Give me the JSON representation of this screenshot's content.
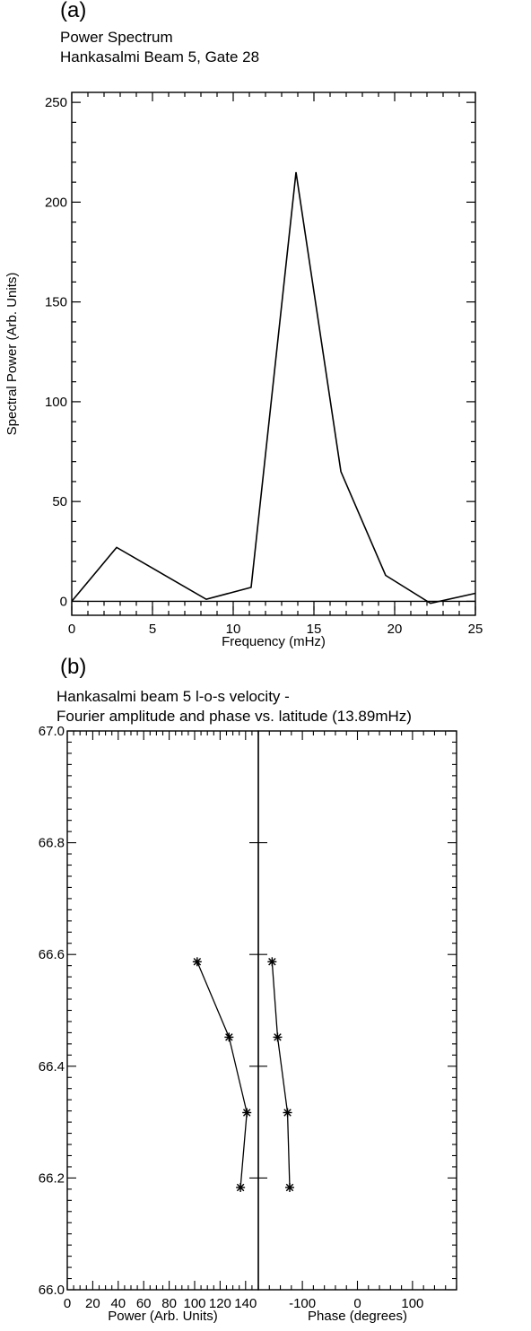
{
  "panel_a": {
    "label": "(a)",
    "title_line1": "Power Spectrum",
    "title_line2": "Hankasalmi Beam 5, Gate 28"
  },
  "panel_b": {
    "label": "(b)",
    "title_line1": "Hankasalmi beam 5 l-o-s velocity -",
    "title_line2": "Fourier amplitude and phase vs. latitude (13.89mHz)"
  },
  "chart_data": [
    {
      "type": "line",
      "title": "Power Spectrum",
      "subtitle": "Hankasalmi Beam 5, Gate 28",
      "xlabel": "Frequency (mHz)",
      "ylabel": "Spectral Power (Arb. Units)",
      "xlim": [
        0,
        25
      ],
      "ylim": [
        -7,
        255
      ],
      "x_ticks": [
        0,
        5,
        10,
        15,
        20,
        25
      ],
      "y_ticks": [
        0,
        50,
        100,
        150,
        200,
        250
      ],
      "grid": false,
      "x": [
        0,
        2.78,
        5.56,
        8.33,
        11.11,
        13.89,
        16.67,
        19.44,
        22.22,
        25
      ],
      "series": [
        {
          "values": [
            0,
            27,
            14,
            1,
            7,
            215,
            65,
            13,
            -1,
            4
          ]
        }
      ]
    },
    {
      "type": "line",
      "markers": "asterisk",
      "xlabel": "Power (Arb. Units)",
      "ylabel": "",
      "xlim": [
        0,
        150
      ],
      "ylim": [
        66.0,
        67.0
      ],
      "x_tick_labels": [
        "0",
        "20",
        "40",
        "60",
        "80",
        "100",
        "120",
        "140"
      ],
      "x_ticks": [
        0,
        20,
        40,
        60,
        80,
        100,
        120,
        140
      ],
      "y_tick_labels": [
        "66.0",
        "66.2",
        "66.4",
        "66.6",
        "66.8",
        "67.0"
      ],
      "y_ticks": [
        66.0,
        66.2,
        66.4,
        66.6,
        66.8,
        67.0
      ],
      "grid": false,
      "series": [
        {
          "x": [
            102,
            127,
            141,
            136
          ],
          "y": [
            66.587,
            66.452,
            66.317,
            66.183
          ]
        }
      ]
    },
    {
      "type": "line",
      "markers": "asterisk",
      "xlabel": "Phase (degrees)",
      "ylabel": "",
      "xlim": [
        -180,
        180
      ],
      "ylim": [
        66.0,
        67.0
      ],
      "x_tick_labels": [
        "-100",
        "0",
        "100"
      ],
      "x_ticks": [
        -100,
        0,
        100
      ],
      "grid": false,
      "series": [
        {
          "x": [
            -155,
            -145,
            -127,
            -123
          ],
          "y": [
            66.587,
            66.452,
            66.317,
            66.183
          ]
        }
      ]
    }
  ]
}
